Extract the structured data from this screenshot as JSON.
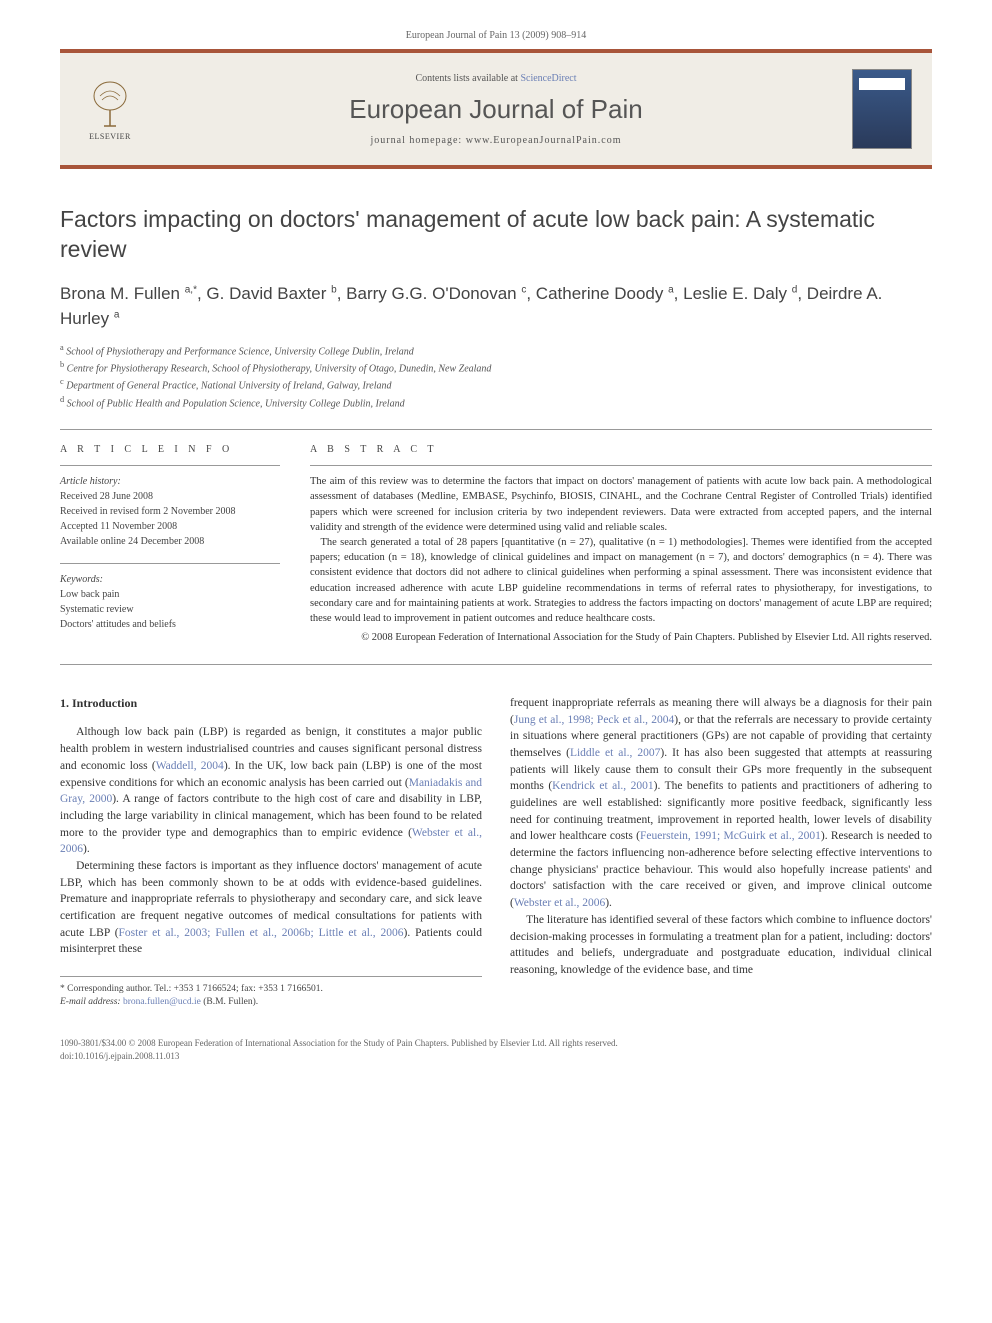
{
  "journal_ref": "European Journal of Pain 13 (2009) 908–914",
  "header": {
    "contents_prefix": "Contents lists available at ",
    "contents_link": "ScienceDirect",
    "journal_title": "European Journal of Pain",
    "homepage_prefix": "journal homepage: ",
    "homepage_url": "www.EuropeanJournalPain.com",
    "publisher_name": "ELSEVIER"
  },
  "article_title": "Factors impacting on doctors' management of acute low back pain: A systematic review",
  "authors_html": "Brona M. Fullen <sup>a,*</sup>, G. David Baxter <sup>b</sup>, Barry G.G. O'Donovan <sup>c</sup>, Catherine Doody <sup>a</sup>, Leslie E. Daly <sup>d</sup>, Deirdre A. Hurley <sup>a</sup>",
  "affiliations": [
    {
      "key": "a",
      "text": "School of Physiotherapy and Performance Science, University College Dublin, Ireland"
    },
    {
      "key": "b",
      "text": "Centre for Physiotherapy Research, School of Physiotherapy, University of Otago, Dunedin, New Zealand"
    },
    {
      "key": "c",
      "text": "Department of General Practice, National University of Ireland, Galway, Ireland"
    },
    {
      "key": "d",
      "text": "School of Public Health and Population Science, University College Dublin, Ireland"
    }
  ],
  "info": {
    "heading_info": "A R T I C L E   I N F O",
    "heading_abstract": "A B S T R A C T",
    "history_label": "Article history:",
    "history": [
      "Received 28 June 2008",
      "Received in revised form 2 November 2008",
      "Accepted 11 November 2008",
      "Available online 24 December 2008"
    ],
    "keywords_label": "Keywords:",
    "keywords": [
      "Low back pain",
      "Systematic review",
      "Doctors' attitudes and beliefs"
    ]
  },
  "abstract": {
    "p1": "The aim of this review was to determine the factors that impact on doctors' management of patients with acute low back pain. A methodological assessment of databases (Medline, EMBASE, Psychinfo, BIOSIS, CINAHL, and the Cochrane Central Register of Controlled Trials) identified papers which were screened for inclusion criteria by two independent reviewers. Data were extracted from accepted papers, and the internal validity and strength of the evidence were determined using valid and reliable scales.",
    "p2": "The search generated a total of 28 papers [quantitative (n = 27), qualitative (n = 1) methodologies]. Themes were identified from the accepted papers; education (n = 18), knowledge of clinical guidelines and impact on management (n = 7), and doctors' demographics (n = 4). There was consistent evidence that doctors did not adhere to clinical guidelines when performing a spinal assessment. There was inconsistent evidence that education increased adherence with acute LBP guideline recommendations in terms of referral rates to physiotherapy, for investigations, to secondary care and for maintaining patients at work. Strategies to address the factors impacting on doctors' management of acute LBP are required; these would lead to improvement in patient outcomes and reduce healthcare costs.",
    "copyright": "© 2008 European Federation of International Association for the Study of Pain Chapters. Published by Elsevier Ltd. All rights reserved."
  },
  "section1_heading": "1. Introduction",
  "body_left": {
    "p1_pre": "Although low back pain (LBP) is regarded as benign, it constitutes a major public health problem in western industrialised countries and causes significant personal distress and economic loss (",
    "p1_ref1": "Waddell, 2004",
    "p1_mid1": "). In the UK, low back pain (LBP) is one of the most expensive conditions for which an economic analysis has been carried out (",
    "p1_ref2": "Maniadakis and Gray, 2000",
    "p1_mid2": "). A range of factors contribute to the high cost of care and disability in LBP, including the large variability in clinical management, which has been found to be related more to the provider type and demographics than to empiric evidence (",
    "p1_ref3": "Webster et al., 2006",
    "p1_post": ").",
    "p2_pre": "Determining these factors is important as they influence doctors' management of acute LBP, which has been commonly shown to be at odds with evidence-based guidelines. Premature and inappropriate referrals to physiotherapy and secondary care, and sick leave certification are frequent negative outcomes of medical consultations for patients with acute LBP (",
    "p2_ref1": "Foster et al., 2003; Fullen et al., 2006b; Little et al., 2006",
    "p2_post": "). Patients could misinterpret these"
  },
  "body_right": {
    "p1_pre": "frequent inappropriate referrals as meaning there will always be a diagnosis for their pain (",
    "p1_ref1": "Jung et al., 1998; Peck et al., 2004",
    "p1_mid1": "), or that the referrals are necessary to provide certainty in situations where general practitioners (GPs) are not capable of providing that certainty themselves (",
    "p1_ref2": "Liddle et al., 2007",
    "p1_mid2": "). It has also been suggested that attempts at reassuring patients will likely cause them to consult their GPs more frequently in the subsequent months (",
    "p1_ref3": "Kendrick et al., 2001",
    "p1_mid3": "). The benefits to patients and practitioners of adhering to guidelines are well established: significantly more positive feedback, significantly less need for continuing treatment, improvement in reported health, lower levels of disability and lower healthcare costs (",
    "p1_ref4": "Feuerstein, 1991; McGuirk et al., 2001",
    "p1_mid4": "). Research is needed to determine the factors influencing non-adherence before selecting effective interventions to change physicians' practice behaviour. This would also hopefully increase patients' and doctors' satisfaction with the care received or given, and improve clinical outcome (",
    "p1_ref5": "Webster et al., 2006",
    "p1_post": ").",
    "p2": "The literature has identified several of these factors which combine to influence doctors' decision-making processes in formulating a treatment plan for a patient, including: doctors' attitudes and beliefs, undergraduate and postgraduate education, individual clinical reasoning, knowledge of the evidence base, and time"
  },
  "footnote": {
    "corr": "* Corresponding author. Tel.: +353 1 7166524; fax: +353 1 7166501.",
    "email_label": "E-mail address:",
    "email": "brona.fullen@ucd.ie",
    "email_suffix": "(B.M. Fullen)."
  },
  "footer": {
    "line1": "1090-3801/$34.00 © 2008 European Federation of International Association for the Study of Pain Chapters. Published by Elsevier Ltd. All rights reserved.",
    "line2": "doi:10.1016/j.ejpain.2008.11.013"
  },
  "colors": {
    "accent_bar": "#a8553a",
    "header_bg": "#f0ede6",
    "link": "#6a7fb5",
    "text": "#333333",
    "muted": "#666666"
  }
}
